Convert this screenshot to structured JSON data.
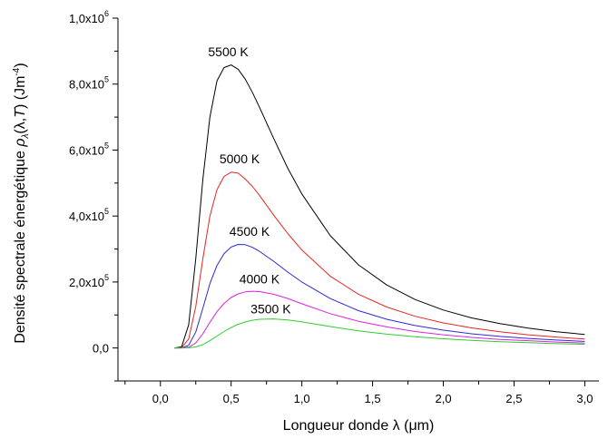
{
  "chart_data": {
    "type": "line",
    "title": "",
    "xlabel": "Longueur donde λ (μm)",
    "ylabel": "Densité spectrale énergétique ρλ(λ,T) (Jm-4)",
    "ylabel_parts": {
      "main": "Densité spectrale énergétique ",
      "rho": "ρ",
      "rho_sub": "λ",
      "args": "(λ,",
      "T": "T",
      "close": ")",
      "unit": " (Jm",
      "unit_sup": "-4",
      "unit_close": ")"
    },
    "xlim": [
      -0.3,
      3.1
    ],
    "ylim": [
      -100000,
      1000000
    ],
    "x_ticks": [
      0.0,
      0.5,
      1.0,
      1.5,
      2.0,
      2.5,
      3.0
    ],
    "x_tick_labels": [
      "0,0",
      "0,5",
      "1,0",
      "1,5",
      "2,0",
      "2,5",
      "3,0"
    ],
    "y_ticks": [
      0,
      200000,
      400000,
      600000,
      800000,
      1000000
    ],
    "y_tick_labels": [
      {
        "mant": "0,0",
        "exp": ""
      },
      {
        "mant": "2,0x10",
        "exp": "5"
      },
      {
        "mant": "4,0x10",
        "exp": "5"
      },
      {
        "mant": "6,0x10",
        "exp": "5"
      },
      {
        "mant": "8,0x10",
        "exp": "5"
      },
      {
        "mant": "1,0x10",
        "exp": "6"
      }
    ],
    "grid": false,
    "legend": "none",
    "series": [
      {
        "name": "5500 K",
        "color": "#000000",
        "x": [
          0.1,
          0.15,
          0.2,
          0.25,
          0.3,
          0.35,
          0.4,
          0.45,
          0.5,
          0.55,
          0.6,
          0.65,
          0.7,
          0.8,
          0.9,
          1.0,
          1.2,
          1.4,
          1.6,
          1.8,
          2.0,
          2.2,
          2.4,
          2.6,
          2.8,
          3.0
        ],
        "y": [
          0,
          3500,
          70000,
          270000,
          510000,
          700000,
          810000,
          850000,
          858000,
          845000,
          815000,
          775000,
          730000,
          636000,
          545000,
          467000,
          341000,
          252000,
          191000,
          147000,
          115000,
          91000,
          74000,
          60000,
          49000,
          41000
        ]
      },
      {
        "name": "5000 K",
        "color": "#e8251f",
        "x": [
          0.1,
          0.15,
          0.2,
          0.25,
          0.3,
          0.35,
          0.4,
          0.45,
          0.5,
          0.55,
          0.6,
          0.65,
          0.7,
          0.8,
          0.9,
          1.0,
          1.2,
          1.4,
          1.6,
          1.8,
          2.0,
          2.2,
          2.4,
          2.6,
          2.8,
          3.0
        ],
        "y": [
          0,
          1000,
          27000,
          125000,
          270000,
          400000,
          480000,
          520000,
          533000,
          530000,
          512000,
          490000,
          463000,
          403000,
          347000,
          297000,
          218000,
          163000,
          124000,
          96000,
          76000,
          61000,
          49000,
          40000,
          33000,
          27000
        ]
      },
      {
        "name": "4500 K",
        "color": "#2a2ad8",
        "x": [
          0.1,
          0.15,
          0.2,
          0.25,
          0.3,
          0.35,
          0.4,
          0.45,
          0.5,
          0.55,
          0.6,
          0.65,
          0.7,
          0.8,
          0.9,
          1.0,
          1.2,
          1.4,
          1.6,
          1.8,
          2.0,
          2.2,
          2.4,
          2.6,
          2.8,
          3.0
        ],
        "y": [
          0,
          200,
          8000,
          48000,
          120000,
          195000,
          250000,
          286000,
          306000,
          314000,
          313000,
          305000,
          293000,
          263000,
          230000,
          200000,
          150000,
          113000,
          87000,
          68000,
          54000,
          43000,
          35000,
          29000,
          24000,
          20000
        ]
      },
      {
        "name": "4000 K",
        "color": "#e020e0",
        "x": [
          0.1,
          0.15,
          0.2,
          0.25,
          0.3,
          0.35,
          0.4,
          0.45,
          0.5,
          0.55,
          0.6,
          0.65,
          0.7,
          0.8,
          0.9,
          1.0,
          1.2,
          1.4,
          1.6,
          1.8,
          2.0,
          2.2,
          2.4,
          2.6,
          2.8,
          3.0
        ],
        "y": [
          0,
          0,
          2000,
          15000,
          43000,
          78000,
          110000,
          135000,
          153000,
          164000,
          170000,
          172000,
          171000,
          163000,
          150000,
          134000,
          104000,
          81000,
          64000,
          50000,
          40000,
          32000,
          26000,
          22000,
          18000,
          15000
        ]
      },
      {
        "name": "3500 K",
        "color": "#2ecc2e",
        "x": [
          0.1,
          0.15,
          0.2,
          0.25,
          0.3,
          0.35,
          0.4,
          0.45,
          0.5,
          0.55,
          0.6,
          0.65,
          0.7,
          0.8,
          0.9,
          1.0,
          1.2,
          1.4,
          1.6,
          1.8,
          2.0,
          2.2,
          2.4,
          2.6,
          2.8,
          3.0
        ],
        "y": [
          0,
          0,
          300,
          3000,
          10000,
          22000,
          36000,
          50000,
          62000,
          72000,
          79000,
          84000,
          87000,
          88000,
          85000,
          79000,
          65000,
          52000,
          42000,
          34000,
          28000,
          23000,
          19000,
          16000,
          13000,
          11000
        ]
      }
    ],
    "curve_labels": [
      {
        "text": "5500 K",
        "x": 0.48,
        "y": 885000
      },
      {
        "text": "5000 K",
        "x": 0.56,
        "y": 560000
      },
      {
        "text": "4500 K",
        "x": 0.63,
        "y": 340000
      },
      {
        "text": "4000 K",
        "x": 0.7,
        "y": 195000
      },
      {
        "text": "3500 K",
        "x": 0.78,
        "y": 105000
      }
    ]
  }
}
